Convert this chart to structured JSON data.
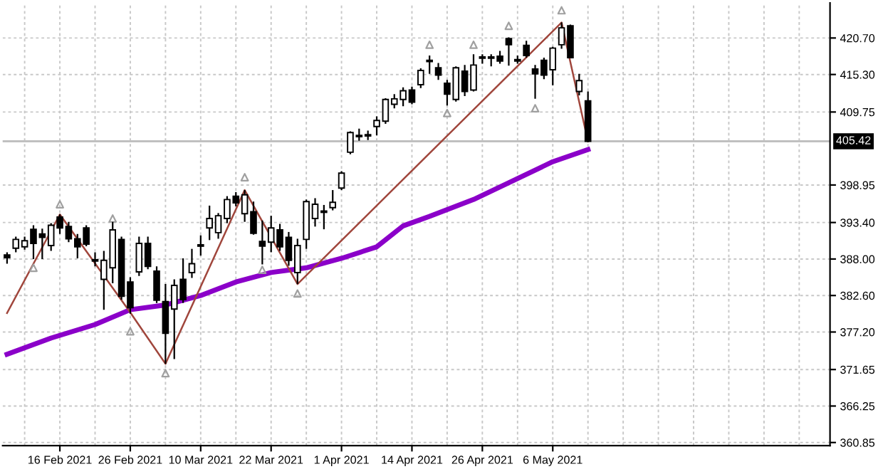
{
  "chart_data": {
    "type": "candlestick",
    "color": "#000000",
    "categories": [
      null,
      null,
      null,
      null,
      null,
      null,
      "16 Feb 2021",
      null,
      null,
      null,
      null,
      null,
      null,
      null,
      "26 Feb 2021",
      null,
      null,
      null,
      null,
      null,
      null,
      null,
      "10 Mar 2021",
      null,
      null,
      null,
      null,
      null,
      null,
      null,
      "22 Mar 2021",
      null,
      null,
      null,
      null,
      null,
      null,
      null,
      "1 Apr 2021",
      null,
      null,
      null,
      null,
      null,
      null,
      null,
      "14 Apr 2021",
      null,
      null,
      null,
      null,
      null,
      null,
      null,
      "26 Apr 2021",
      null,
      null,
      null,
      null,
      null,
      null,
      null,
      "6 May 2021",
      null,
      null,
      null,
      null,
      null,
      null,
      null,
      null,
      null,
      null,
      null,
      null,
      null,
      null,
      null,
      null,
      null,
      null,
      null,
      null,
      null,
      null,
      null,
      null,
      null,
      null,
      null,
      null,
      null,
      null,
      null
    ],
    "ohlc": [
      [
        388.6,
        389.0,
        387.3,
        388.2
      ],
      [
        389.6,
        391.3,
        389.0,
        390.9
      ],
      [
        389.8,
        391.3,
        389.4,
        390.7
      ],
      [
        392.4,
        393.0,
        388.0,
        390.3
      ],
      [
        391.7,
        392.5,
        388.0,
        391.2
      ],
      [
        390.0,
        393.3,
        389.2,
        393.0
      ],
      [
        394.2,
        394.6,
        391.7,
        392.6
      ],
      [
        392.8,
        393.5,
        390.5,
        391.0
      ],
      [
        391.0,
        391.7,
        388.1,
        389.8
      ],
      [
        392.6,
        393.0,
        389.9,
        390.2
      ],
      [
        387.9,
        389.0,
        386.9,
        387.7
      ],
      [
        385.0,
        389.2,
        380.5,
        387.8
      ],
      [
        386.7,
        393.5,
        384.4,
        392.3
      ],
      [
        390.9,
        391.3,
        382.0,
        382.5
      ],
      [
        384.6,
        385.3,
        379.9,
        380.8
      ],
      [
        386.1,
        391.3,
        385.5,
        390.3
      ],
      [
        390.3,
        391.3,
        386.5,
        386.9
      ],
      [
        386.2,
        386.9,
        381.5,
        381.9
      ],
      [
        381.7,
        384.3,
        372.5,
        377.0
      ],
      [
        380.6,
        385.0,
        373.2,
        384.1
      ],
      [
        385.0,
        388.1,
        381.5,
        382.0
      ],
      [
        386.0,
        389.5,
        385.2,
        387.3
      ],
      [
        389.9,
        391.5,
        388.5,
        390.1
      ],
      [
        392.6,
        395.9,
        390.8,
        394.0
      ],
      [
        391.9,
        394.8,
        391.0,
        394.4
      ],
      [
        394.0,
        397.3,
        393.3,
        396.8
      ],
      [
        397.3,
        397.9,
        395.8,
        396.3
      ],
      [
        394.7,
        398.2,
        393.5,
        397.5
      ],
      [
        395.0,
        396.5,
        391.6,
        391.8
      ],
      [
        390.6,
        393.7,
        387.2,
        389.9
      ],
      [
        390.5,
        394.4,
        389.0,
        392.6
      ],
      [
        392.3,
        393.2,
        389.2,
        389.8
      ],
      [
        391.2,
        392.0,
        387.0,
        387.8
      ],
      [
        386.0,
        391.0,
        384.3,
        390.0
      ],
      [
        390.9,
        396.8,
        389.5,
        396.5
      ],
      [
        394.0,
        397.0,
        392.8,
        396.1
      ],
      [
        394.9,
        396.0,
        392.4,
        395.1
      ],
      [
        395.6,
        398.2,
        395.2,
        396.4
      ],
      [
        398.5,
        401.0,
        398.2,
        400.7
      ],
      [
        403.8,
        406.9,
        403.5,
        406.7
      ],
      [
        406.1,
        407.3,
        405.5,
        406.3
      ],
      [
        406.2,
        407.0,
        405.6,
        406.4
      ],
      [
        407.6,
        409.1,
        406.3,
        408.5
      ],
      [
        408.4,
        411.8,
        408.0,
        411.6
      ],
      [
        410.9,
        412.4,
        410.3,
        411.7
      ],
      [
        411.6,
        413.4,
        410.6,
        412.9
      ],
      [
        413.0,
        413.5,
        410.9,
        411.2
      ],
      [
        413.8,
        416.2,
        413.3,
        415.9
      ],
      [
        417.2,
        418.1,
        415.4,
        417.4
      ],
      [
        416.3,
        417.0,
        414.5,
        415.2
      ],
      [
        414.0,
        414.5,
        410.7,
        412.4
      ],
      [
        411.6,
        416.5,
        411.3,
        416.3
      ],
      [
        415.8,
        416.7,
        412.1,
        412.8
      ],
      [
        413.0,
        418.3,
        412.8,
        416.7
      ],
      [
        417.7,
        418.3,
        416.9,
        417.9
      ],
      [
        417.7,
        418.3,
        416.5,
        417.9
      ],
      [
        418.0,
        418.8,
        416.9,
        417.3
      ],
      [
        420.6,
        420.8,
        416.6,
        419.7
      ],
      [
        417.3,
        418.1,
        416.9,
        417.5
      ],
      [
        419.6,
        420.3,
        417.8,
        418.1
      ],
      [
        416.1,
        416.7,
        411.7,
        415.4
      ],
      [
        417.4,
        417.8,
        414.6,
        415.2
      ],
      [
        416.0,
        419.4,
        413.7,
        419.2
      ],
      [
        419.7,
        423.0,
        419.1,
        422.2
      ],
      [
        422.5,
        422.7,
        417.8,
        417.8
      ],
      [
        412.8,
        415.4,
        412.2,
        414.4
      ],
      [
        411.4,
        412.8,
        405.3,
        405.42
      ],
      null,
      null,
      null,
      null,
      null,
      null,
      null,
      null,
      null,
      null,
      null,
      null,
      null,
      null,
      null,
      null,
      null,
      null,
      null,
      null,
      null,
      null,
      null,
      null,
      null,
      null,
      null
    ],
    "series": [
      {
        "type": "line",
        "color": "#8b00c9",
        "values": [
          373.9,
          null,
          null,
          null,
          null,
          376.3,
          null,
          null,
          null,
          null,
          378.3,
          null,
          null,
          null,
          380.5,
          null,
          null,
          null,
          381.2,
          null,
          null,
          null,
          382.6,
          null,
          null,
          null,
          384.6,
          null,
          null,
          null,
          386.0,
          null,
          null,
          null,
          386.7,
          null,
          null,
          null,
          388.1,
          null,
          null,
          null,
          389.8,
          null,
          null,
          392.9,
          null,
          null,
          394.3,
          null,
          null,
          null,
          null,
          396.8,
          null,
          null,
          null,
          null,
          399.9,
          null,
          null,
          null,
          402.4,
          null,
          null,
          null,
          404.2,
          null,
          null,
          null,
          null,
          null,
          null,
          null,
          null,
          null,
          null,
          null,
          null,
          null,
          null,
          null,
          null,
          null,
          null,
          null,
          null,
          null,
          null,
          null,
          null,
          null,
          null,
          null
        ]
      },
      {
        "type": "line",
        "color": "#a0463c",
        "values": [
          380.0,
          null,
          null,
          null,
          null,
          null,
          394.6,
          null,
          null,
          null,
          null,
          null,
          null,
          null,
          380.1,
          null,
          null,
          null,
          372.5,
          null,
          null,
          null,
          null,
          null,
          null,
          null,
          null,
          398.2,
          null,
          null,
          null,
          null,
          null,
          384.3,
          null,
          null,
          null,
          null,
          null,
          null,
          null,
          null,
          null,
          null,
          null,
          null,
          null,
          null,
          null,
          null,
          null,
          null,
          null,
          null,
          null,
          null,
          null,
          null,
          null,
          null,
          null,
          null,
          null,
          423.0,
          null,
          null,
          405.4,
          null,
          null,
          null,
          null,
          null,
          null,
          null,
          null,
          null,
          null,
          null,
          null,
          null,
          null,
          null,
          null,
          null,
          null,
          null,
          null,
          null,
          null,
          null,
          null,
          null,
          null,
          null
        ]
      },
      {
        "type": "scatter",
        "marker": "triangle",
        "color": "#a0a0a0",
        "values": [
          null,
          null,
          null,
          null,
          null,
          null,
          396.1,
          null,
          null,
          null,
          null,
          null,
          394.0,
          null,
          null,
          null,
          null,
          null,
          null,
          null,
          null,
          null,
          null,
          null,
          null,
          null,
          null,
          400.1,
          null,
          null,
          null,
          null,
          null,
          null,
          null,
          null,
          null,
          null,
          null,
          null,
          null,
          null,
          null,
          null,
          null,
          null,
          null,
          null,
          419.7,
          null,
          null,
          null,
          null,
          419.7,
          null,
          null,
          null,
          422.5,
          null,
          null,
          null,
          null,
          null,
          424.8,
          null,
          null,
          null,
          null,
          null,
          null,
          null,
          null,
          null,
          null,
          null,
          null,
          null,
          null,
          null,
          null,
          null,
          null,
          null,
          null,
          null,
          null,
          null,
          null,
          null,
          null,
          null,
          null,
          null,
          null
        ]
      },
      {
        "type": "scatter",
        "marker": "triangle",
        "color": "#a0a0a0",
        "values": [
          null,
          null,
          null,
          386.7,
          null,
          null,
          null,
          null,
          null,
          null,
          null,
          null,
          null,
          null,
          377.3,
          null,
          null,
          null,
          371.1,
          null,
          null,
          null,
          null,
          null,
          null,
          null,
          null,
          null,
          null,
          386.4,
          null,
          null,
          null,
          382.9,
          null,
          null,
          null,
          null,
          null,
          null,
          null,
          null,
          null,
          null,
          null,
          null,
          null,
          null,
          null,
          null,
          409.6,
          null,
          null,
          null,
          null,
          null,
          null,
          null,
          null,
          null,
          410.3,
          null,
          null,
          null,
          null,
          null,
          null,
          null,
          null,
          null,
          null,
          null,
          null,
          null,
          null,
          null,
          null,
          null,
          null,
          null,
          null,
          null,
          null,
          null,
          null,
          null,
          null,
          null,
          null,
          null,
          null,
          null,
          null,
          null
        ]
      }
    ],
    "ref_lines": [
      {
        "axis": "y",
        "value": 405.42,
        "label": "405.42",
        "color": "#c0c0c0"
      }
    ],
    "ylim": [
      360.4,
      425.9
    ],
    "yticks": [
      {
        "value": 360.85,
        "label": "360.85"
      },
      {
        "value": 366.25,
        "label": "366.25"
      },
      {
        "value": 371.65,
        "label": "371.65"
      },
      {
        "value": 377.2,
        "label": "377.20"
      },
      {
        "value": 382.6,
        "label": "382.60"
      },
      {
        "value": 388.0,
        "label": "388.00"
      },
      {
        "value": 393.4,
        "label": "393.40"
      },
      {
        "value": 398.95,
        "label": "398.95"
      },
      {
        "value": 409.75,
        "label": "409.75"
      },
      {
        "value": 415.3,
        "label": "415.30"
      },
      {
        "value": 420.7,
        "label": "420.70"
      }
    ],
    "grid": true,
    "legend": false
  }
}
